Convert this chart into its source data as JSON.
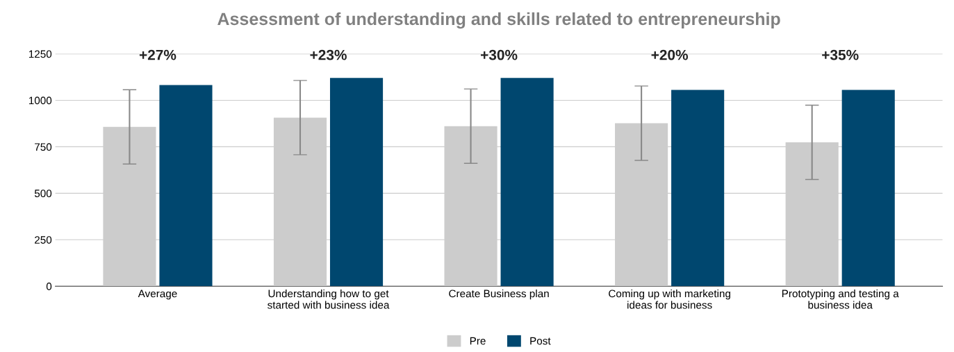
{
  "chart_data": {
    "type": "bar",
    "title": "Assessment of understanding and skills related to entrepreneurship",
    "categories": [
      "Average",
      "Understanding how to get\nstarted with business idea",
      "Create Business plan",
      "Coming up with marketing\nideas for business",
      "Prototyping and testing a\nbusiness idea"
    ],
    "series": [
      {
        "name": "Pre",
        "color": "#cccccc",
        "values": [
          857,
          907,
          861,
          877,
          774
        ],
        "errors": [
          200,
          200,
          200,
          200,
          200
        ]
      },
      {
        "name": "Post",
        "color": "#00476f",
        "values": [
          1082,
          1120,
          1120,
          1056,
          1056
        ]
      }
    ],
    "annotations": [
      "+27%",
      "+23%",
      "+30%",
      "+20%",
      "+35%"
    ],
    "ylim": [
      0,
      1250
    ],
    "yticks": [
      0,
      250,
      500,
      750,
      1000,
      1250
    ],
    "grid": "y",
    "legend": "bottom"
  }
}
